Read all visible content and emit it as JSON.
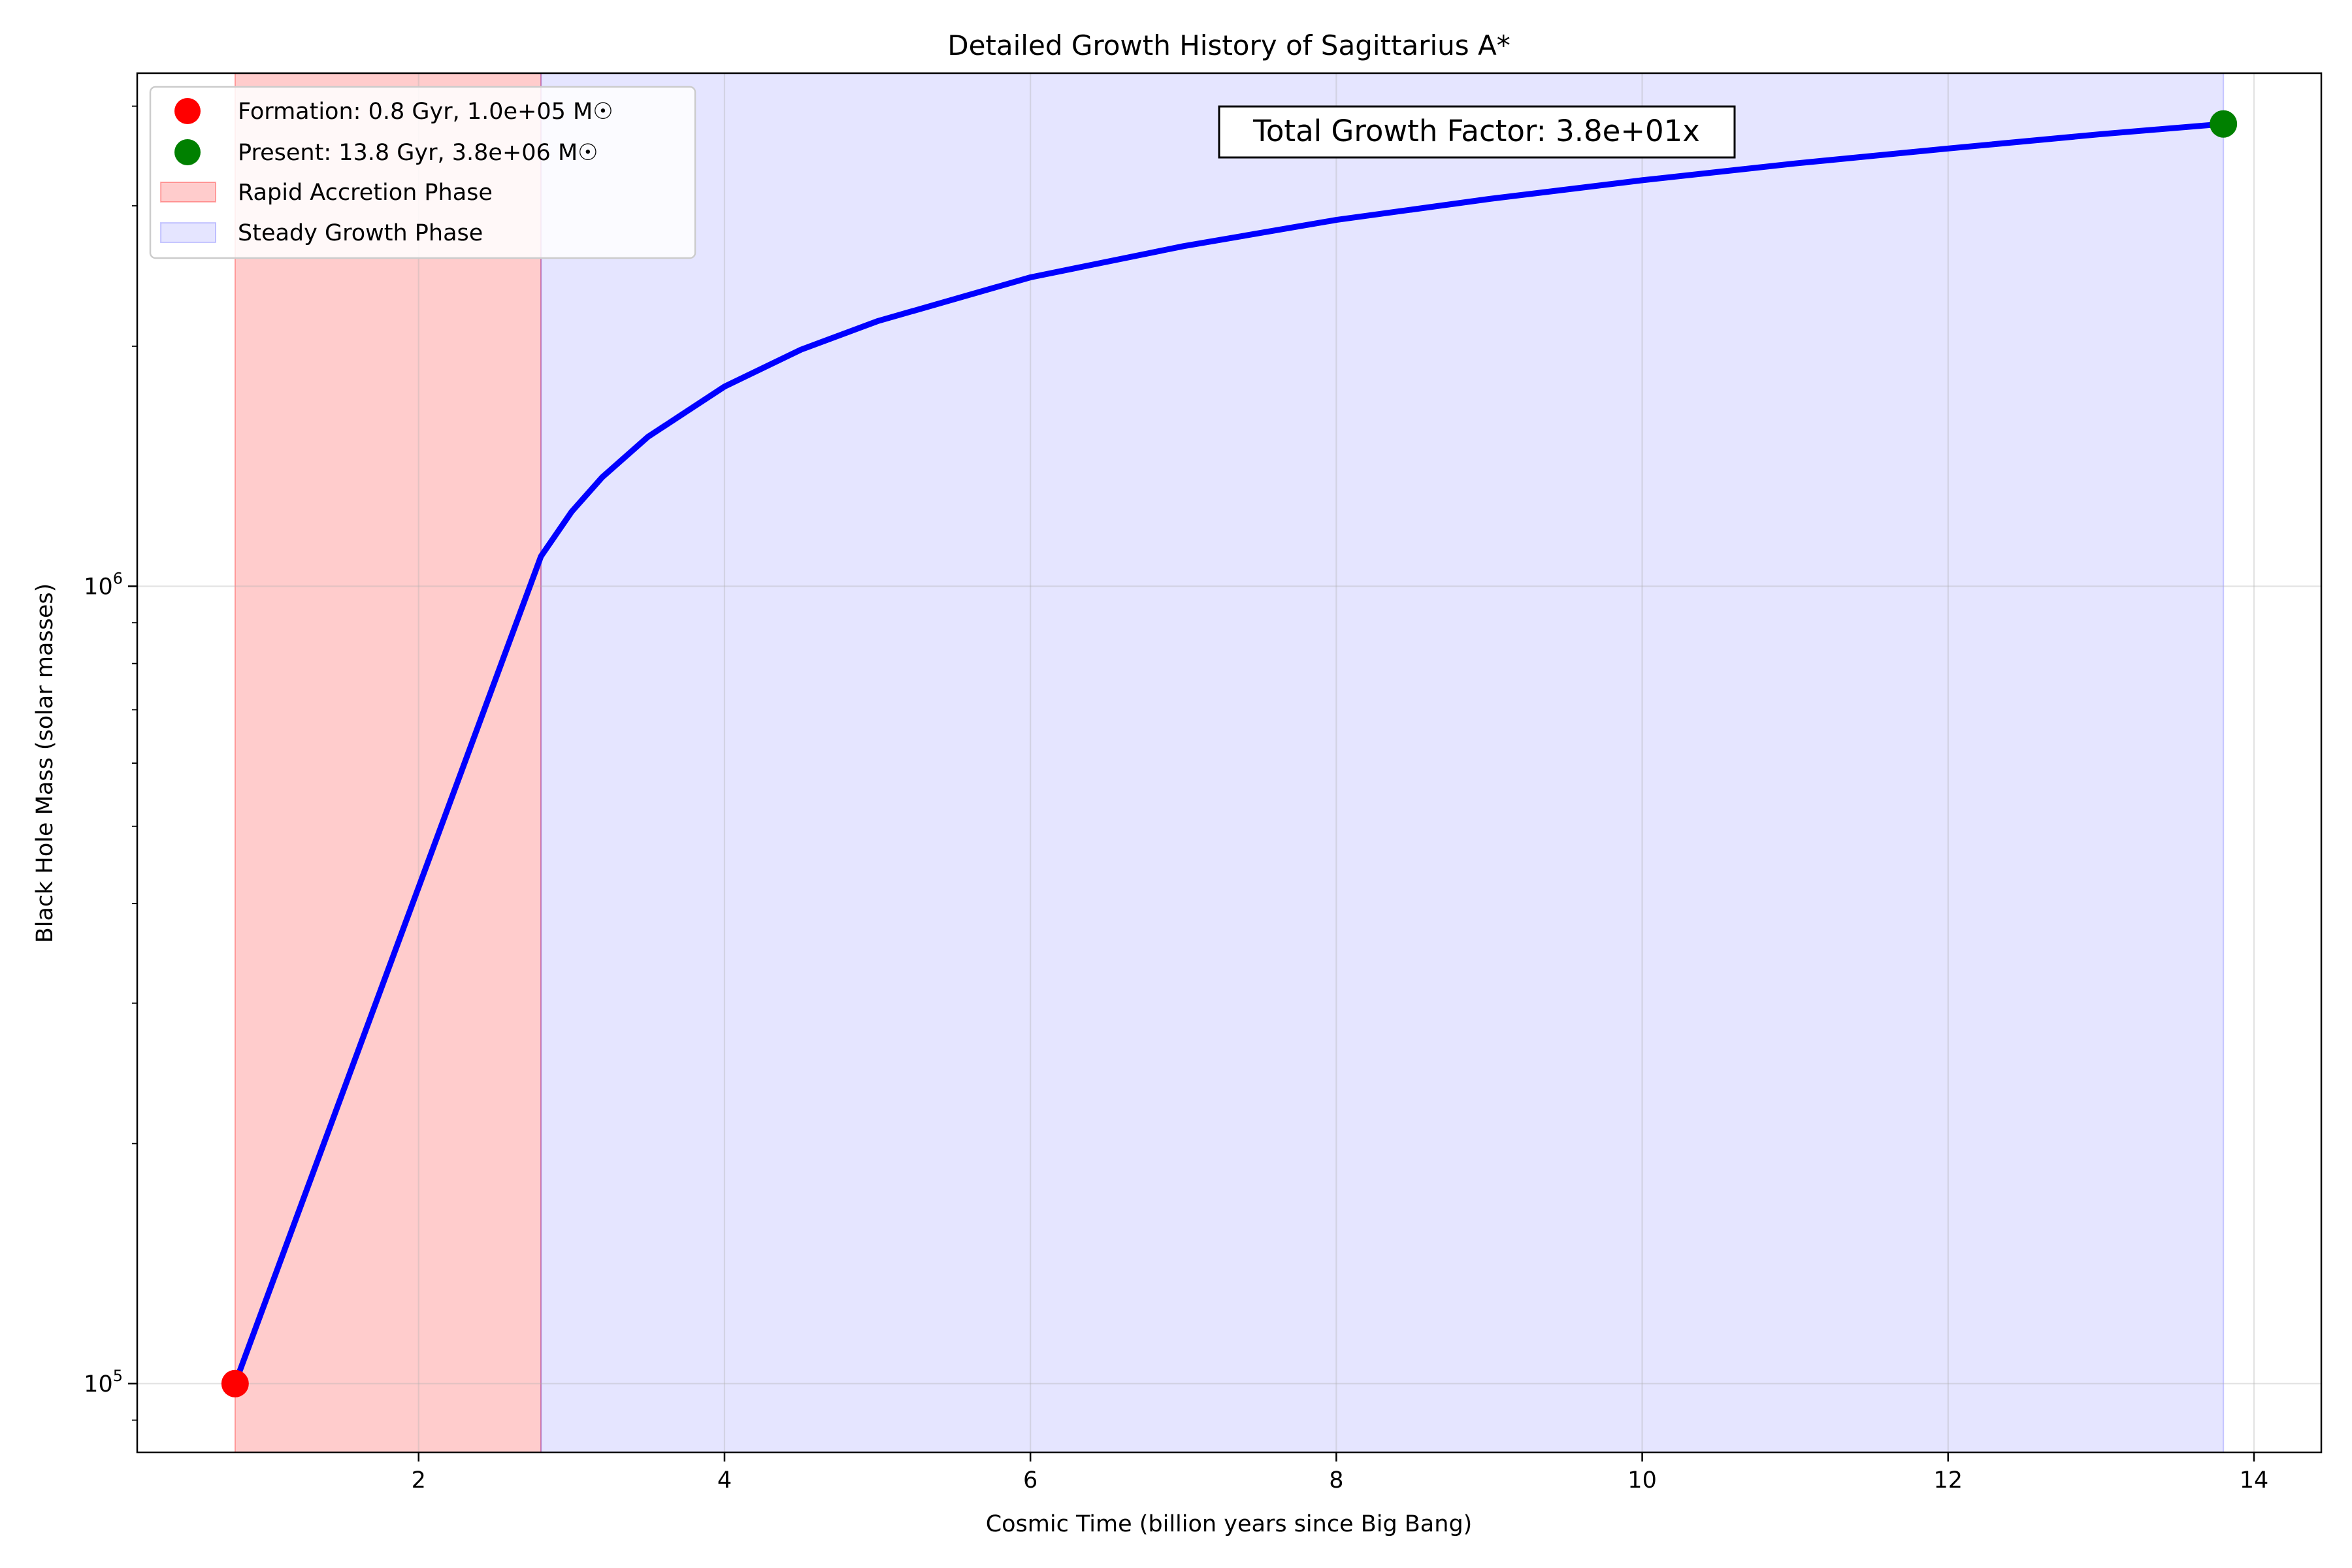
{
  "chart_data": {
    "type": "line",
    "title": "Detailed Growth History of Sagittarius A*",
    "xlabel": "Cosmic Time (billion years since Big Bang)",
    "ylabel": "Black Hole Mass (solar masses)",
    "xlim": [
      0.16,
      14.44
    ],
    "ylim": [
      82000,
      4400000
    ],
    "yscale": "log",
    "grid": true,
    "legend_position": "top-left",
    "xticks": [
      2,
      4,
      6,
      8,
      10,
      12,
      14
    ],
    "yticks": [
      {
        "value": 100000,
        "base": "10",
        "exp": "5"
      },
      {
        "value": 1000000,
        "base": "10",
        "exp": "6"
      }
    ],
    "series": [
      {
        "color": "#0000ff",
        "x": [
          0.8,
          2.8,
          3.0,
          3.2,
          3.5,
          4.0,
          4.5,
          5.0,
          6.0,
          7.0,
          8.0,
          9.0,
          10.0,
          11.0,
          12.0,
          13.0,
          13.8
        ],
        "y": [
          100000,
          1090000,
          1240000,
          1370000,
          1540000,
          1780000,
          1980000,
          2150000,
          2440000,
          2670000,
          2880000,
          3060000,
          3230000,
          3390000,
          3540000,
          3690000,
          3800000
        ]
      }
    ],
    "markers": [
      {
        "label": "Formation: 0.8 Gyr, 1.0e+05 M☉",
        "x": 0.8,
        "y": 100000,
        "color": "#ff0000"
      },
      {
        "label": "Present: 13.8 Gyr, 3.8e+06 M☉",
        "x": 13.8,
        "y": 3800000,
        "color": "#008000"
      }
    ],
    "regions": [
      {
        "label": "Rapid Accretion Phase",
        "x_start": 0.8,
        "x_end": 2.8,
        "color": "#ff0000",
        "alpha": 0.2
      },
      {
        "label": "Steady Growth Phase",
        "x_start": 2.8,
        "x_end": 13.8,
        "color": "#0000ff",
        "alpha": 0.1
      }
    ],
    "annotation": {
      "text": "Total Growth Factor: 3.8e+01x"
    }
  }
}
